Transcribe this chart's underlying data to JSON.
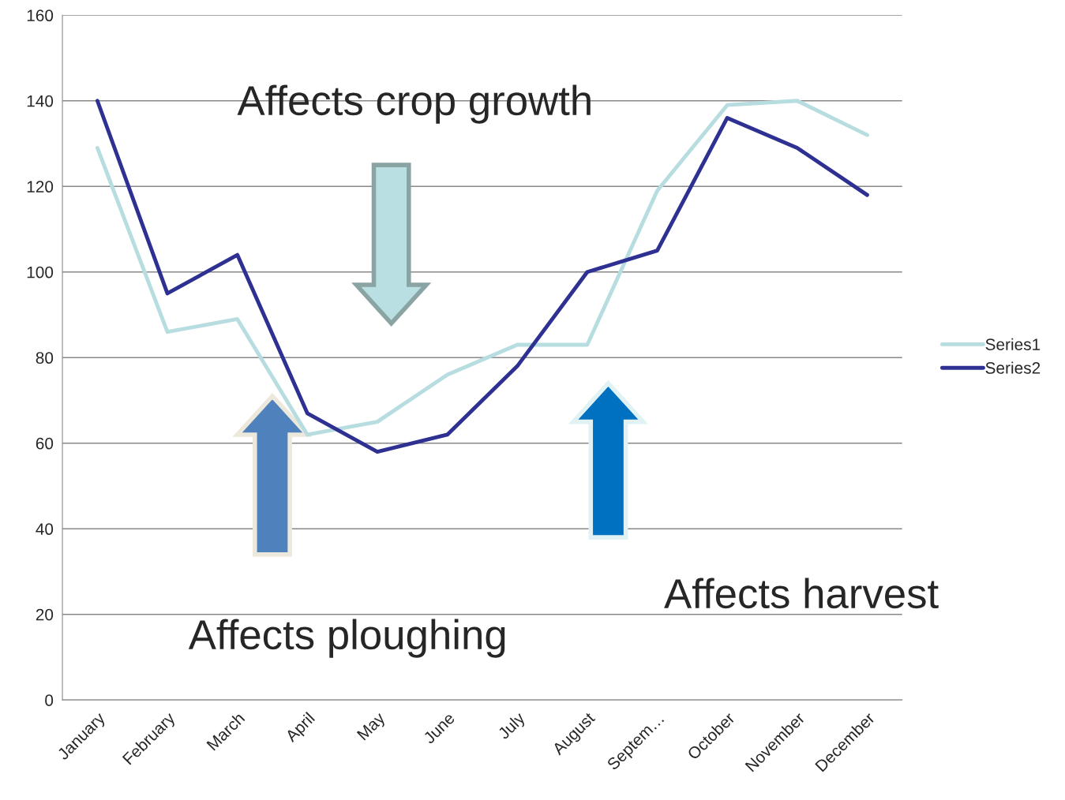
{
  "chart_data": {
    "type": "line",
    "categories": [
      "January",
      "February",
      "March",
      "April",
      "May",
      "June",
      "July",
      "August",
      "Septem…",
      "October",
      "November",
      "December"
    ],
    "series": [
      {
        "name": "Series1",
        "color": "#b7dde0",
        "values": [
          129,
          86,
          89,
          62,
          65,
          76,
          83,
          83,
          119,
          139,
          140,
          132
        ]
      },
      {
        "name": "Series2",
        "color": "#2e3192",
        "values": [
          140,
          95,
          104,
          67,
          58,
          62,
          78,
          100,
          105,
          136,
          129,
          118
        ]
      }
    ],
    "ylim": [
      0,
      160
    ],
    "yticks": [
      0,
      20,
      40,
      60,
      80,
      100,
      120,
      140,
      160
    ],
    "grid": "y",
    "legend": "right",
    "marker": "none",
    "line_style": "solid",
    "annotations": [
      "Affects crop growth",
      "Affects ploughing",
      "Affects harvest"
    ]
  }
}
